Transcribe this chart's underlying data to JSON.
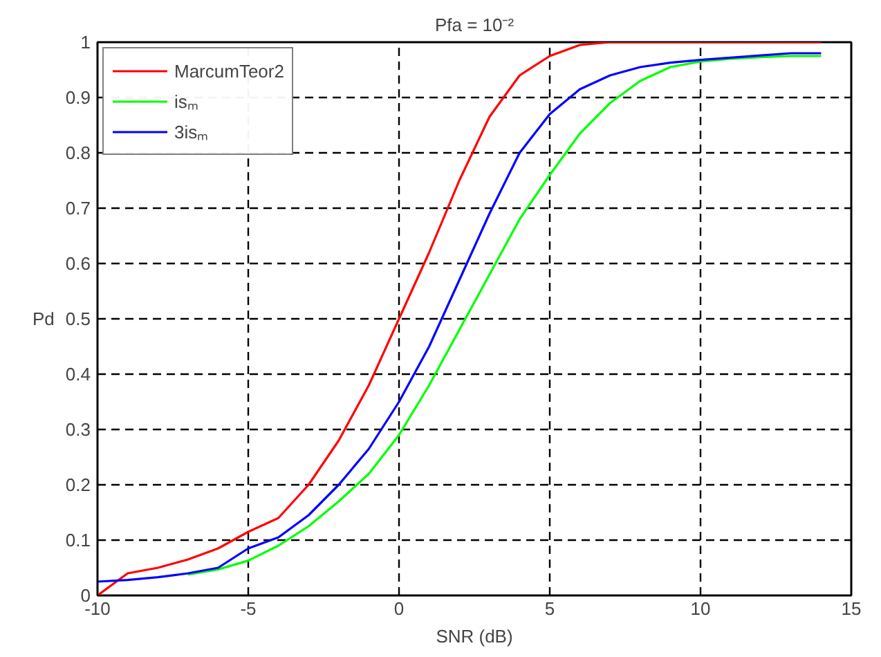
{
  "chart_data": {
    "type": "line",
    "title": "Pfa = 10⁻²",
    "xlabel": "SNR (dB)",
    "ylabel": "Pd",
    "x": [
      -10,
      -9,
      -8,
      -7,
      -6,
      -5,
      -4,
      -3,
      -2,
      -1,
      0,
      1,
      2,
      3,
      4,
      5,
      6,
      7,
      8,
      9,
      10,
      11,
      12,
      13,
      14
    ],
    "series": [
      {
        "name": "MarcumTeor2",
        "color": "#ff0000",
        "values": [
          0,
          0.04,
          0.05,
          0.065,
          0.085,
          0.115,
          0.14,
          0.2,
          0.28,
          0.38,
          0.5,
          0.62,
          0.75,
          0.865,
          0.94,
          0.975,
          0.995,
          1,
          1,
          1,
          1,
          1,
          1,
          1,
          1
        ]
      },
      {
        "name": "isₘ",
        "color": "#00ff00",
        "values": [
          null,
          null,
          null,
          0.038,
          0.047,
          0.063,
          0.09,
          0.125,
          0.17,
          0.22,
          0.29,
          0.38,
          0.48,
          0.58,
          0.68,
          0.76,
          0.835,
          0.89,
          0.93,
          0.955,
          0.965,
          0.97,
          0.973,
          0.975,
          0.975
        ]
      },
      {
        "name": "3isₘ",
        "color": "#0000ff",
        "values": [
          0.025,
          0.028,
          0.033,
          0.04,
          0.05,
          0.085,
          0.105,
          0.145,
          0.2,
          0.265,
          0.35,
          0.45,
          0.57,
          0.69,
          0.8,
          0.87,
          0.915,
          0.94,
          0.955,
          0.963,
          0.968,
          0.972,
          0.976,
          0.98,
          0.98
        ]
      }
    ],
    "xlim": [
      -10,
      15
    ],
    "xticks": [
      -10,
      -5,
      0,
      5,
      10,
      15
    ],
    "ylim": [
      0,
      1
    ],
    "yticks": [
      0,
      0.1,
      0.2,
      0.3,
      0.4,
      0.5,
      0.6,
      0.7,
      0.8,
      0.9,
      1
    ],
    "grid": true,
    "legend": "top left",
    "marker": "none",
    "line_style": "solid"
  }
}
